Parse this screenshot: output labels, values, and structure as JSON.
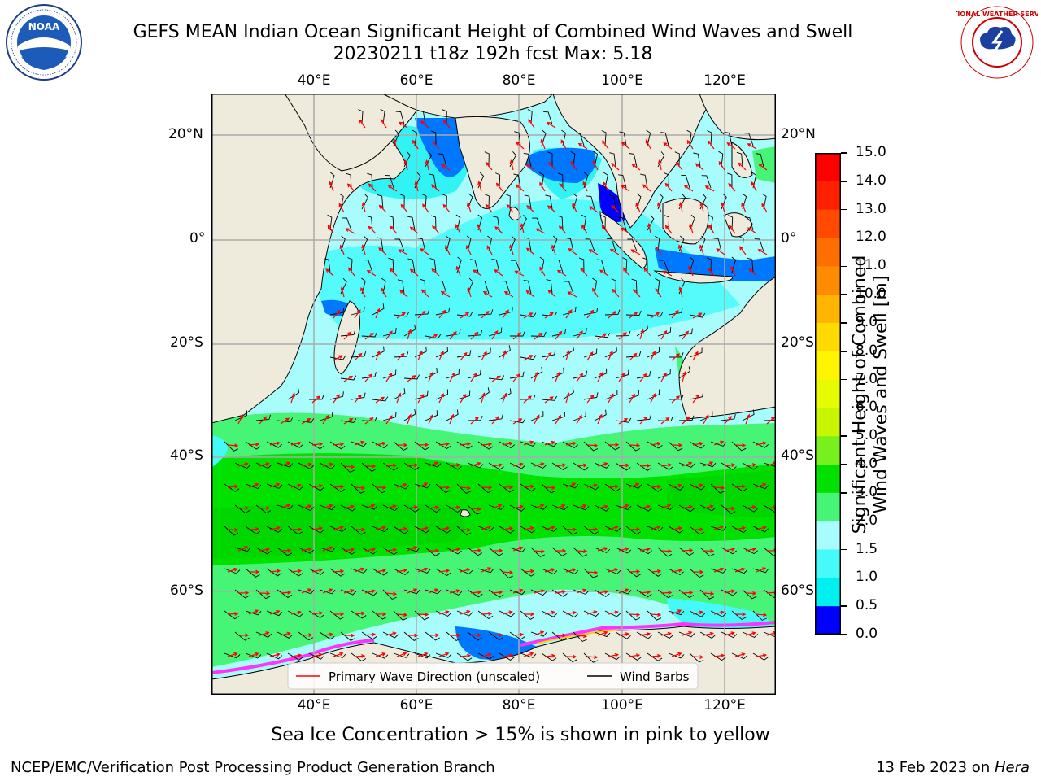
{
  "title": {
    "line1": "GEFS MEAN Indian Ocean Significant Height of Combined Wind Waves and Swell",
    "line2": "20230211 t18z 192h fcst   Max: 5.18"
  },
  "logos": {
    "noaa": {
      "icon": "noaa-logo-icon",
      "text": "NOAA"
    },
    "nws": {
      "icon": "nws-logo-icon",
      "text": "NATIONAL WEATHER SERVICE"
    }
  },
  "map": {
    "lon_labels": [
      "40°E",
      "60°E",
      "80°E",
      "100°E",
      "120°E"
    ],
    "lat_labels": [
      "20°N",
      "0°",
      "20°S",
      "40°S",
      "60°S"
    ],
    "lon_range": [
      20,
      130
    ],
    "lat_range": [
      -73,
      28
    ],
    "colors": {
      "land": "#efebdc",
      "ocean_low": "#a8fcfc",
      "ice": "#ff33ff"
    },
    "legend": {
      "wave_label": "Primary Wave Direction (unscaled)",
      "wind_label": "Wind Barbs",
      "wave_color": "#ff0000",
      "wind_color": "#000000"
    }
  },
  "colorbar": {
    "label_line1": "Significant Height of Combined",
    "label_line2": "Wind Waves and Swell [m]",
    "ticks": [
      "15.0",
      "14.0",
      "13.0",
      "12.0",
      "11.0",
      "10.0",
      "9.0",
      "8.0",
      "7.0",
      "6.0",
      "5.0",
      "4.0",
      "3.0",
      "2.0",
      "1.5",
      "1.0",
      "0.5",
      "0.0"
    ],
    "colors": [
      "#ff0000",
      "#ff2000",
      "#ff4a00",
      "#ff6e00",
      "#ff8c00",
      "#ffb400",
      "#ffda00",
      "#fff500",
      "#e6fa00",
      "#c8f500",
      "#78f01e",
      "#00e100",
      "#46f576",
      "#a8fcfc",
      "#46fafa",
      "#00f0f0",
      "#0077ff",
      "#0000ff"
    ]
  },
  "footer": {
    "ice_note": "Sea Ice Concentration > 15% is shown in pink to yellow",
    "credit": "NCEP/EMC/Verification Post Processing Product Generation Branch",
    "date": "13 Feb 2023 on ",
    "machine": "Hera"
  }
}
